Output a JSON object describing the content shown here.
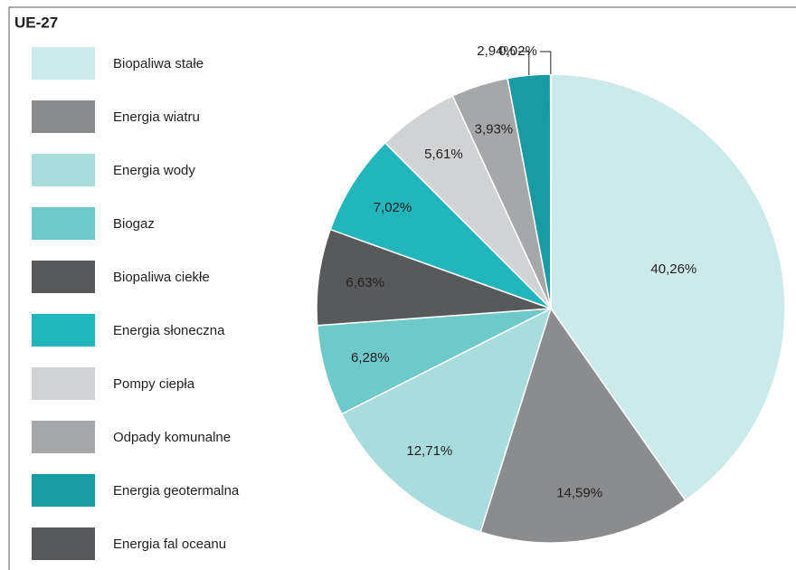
{
  "chart_data": {
    "type": "pie",
    "title": "UE-27",
    "categories": [
      "Biopaliwa stałe",
      "Energia wiatru",
      "Energia wody",
      "Biogaz",
      "Biopaliwa ciekłe",
      "Energia słoneczna",
      "Pompy ciepła",
      "Odpady komunalne",
      "Energia geotermalna",
      "Energia fal oceanu"
    ],
    "values": [
      40.26,
      14.59,
      12.71,
      6.28,
      6.63,
      7.02,
      5.61,
      3.93,
      2.94,
      0.02
    ],
    "value_labels": [
      "40,26%",
      "14,59%",
      "12,71%",
      "6,28%",
      "6,63%",
      "7,02%",
      "5,61%",
      "3,93%",
      "2,94%",
      "0,02%"
    ],
    "colors": [
      "#cdeaea",
      "#8b8c8e",
      "#a9dcdc",
      "#6fc9c9",
      "#58595b",
      "#22b5bb",
      "#d1d2d3",
      "#a6a7a9",
      "#1a9ba3",
      "#58595b"
    ]
  }
}
